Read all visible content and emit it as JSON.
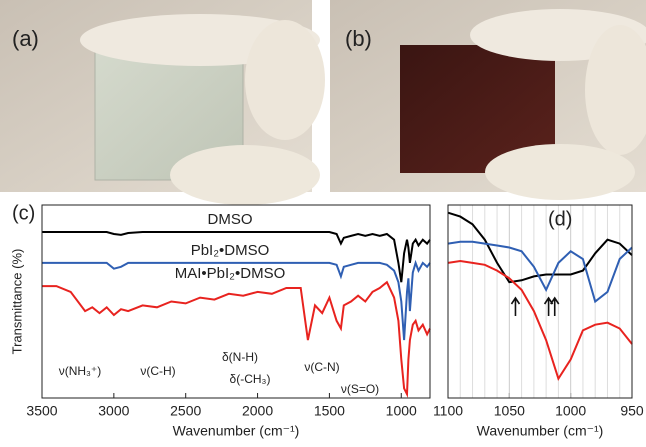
{
  "photos": [
    {
      "label": "(a)"
    },
    {
      "label": "(b)"
    }
  ],
  "chart_data": [
    {
      "type": "line",
      "panel_label": "(c)",
      "xlabel": "Wavenumber (cm⁻¹)",
      "ylabel": "Transmittance (%)",
      "xlim": [
        3500,
        800
      ],
      "xticks": [
        3500,
        3000,
        2500,
        2000,
        1500,
        1000
      ],
      "ylim": [
        0,
        100
      ],
      "grid": false,
      "x": [
        3500,
        3400,
        3300,
        3200,
        3150,
        3100,
        3050,
        3000,
        2950,
        2900,
        2800,
        2700,
        2600,
        2500,
        2400,
        2300,
        2200,
        2100,
        2000,
        1900,
        1800,
        1700,
        1650,
        1600,
        1550,
        1500,
        1450,
        1420,
        1400,
        1350,
        1300,
        1250,
        1200,
        1150,
        1100,
        1050,
        1020,
        1000,
        980,
        960,
        950,
        940,
        920,
        900,
        880,
        850,
        820,
        800
      ],
      "series": [
        {
          "name": "DMSO",
          "color": "#000000",
          "values": [
            86,
            86,
            86,
            86,
            86,
            86,
            86,
            85,
            84.5,
            85.5,
            86,
            86,
            86,
            86,
            86,
            86,
            86,
            86,
            86,
            86,
            86,
            86,
            86,
            86,
            86,
            86,
            85,
            80,
            83,
            84,
            85,
            84,
            85,
            84,
            85,
            82,
            70,
            60,
            75,
            82,
            78,
            70,
            80,
            82,
            79,
            82,
            80,
            82
          ]
        },
        {
          "name": "PbI₂•DMSO",
          "color": "#2f5fb3",
          "values": [
            70,
            70,
            70,
            70,
            70,
            70,
            70,
            67,
            68,
            70,
            70,
            70,
            70,
            70,
            70,
            70,
            70,
            70,
            70,
            70,
            70,
            70,
            70,
            70,
            70,
            70,
            69,
            63,
            68,
            69,
            70,
            70,
            70,
            70,
            69,
            66,
            60,
            50,
            30,
            55,
            62,
            45,
            65,
            70,
            66,
            70,
            68,
            70
          ]
        },
        {
          "name": "MAI•PbI₂•DMSO",
          "color": "#e8231f",
          "values": [
            58,
            58,
            55,
            45,
            47,
            44,
            47,
            43,
            46,
            45,
            48,
            47,
            50,
            49,
            52,
            51,
            54,
            53,
            55,
            54,
            57,
            57,
            30,
            48,
            44,
            52,
            40,
            36,
            48,
            50,
            53,
            50,
            55,
            57,
            60,
            52,
            40,
            20,
            5,
            2,
            20,
            30,
            38,
            40,
            35,
            38,
            33,
            36
          ]
        }
      ],
      "annotations": [
        "ν(NH₃⁺)",
        "ν(C-H)",
        "δ(N-H)",
        "δ(-CH₃)",
        "ν(C-N)",
        "ν(S=O)"
      ]
    },
    {
      "type": "line",
      "panel_label": "(d)",
      "xlabel": "Wavenumber (cm⁻¹)",
      "xlim": [
        1100,
        950
      ],
      "xticks": [
        1100,
        1050,
        1000,
        950
      ],
      "xticks_minor": [
        1090,
        1080,
        1070,
        1060,
        1040,
        1030,
        1020,
        1010,
        990,
        980,
        970,
        960
      ],
      "ylim": [
        0,
        100
      ],
      "grid": true,
      "x": [
        1100,
        1090,
        1080,
        1070,
        1060,
        1050,
        1040,
        1030,
        1020,
        1010,
        1000,
        990,
        980,
        970,
        960,
        950
      ],
      "series": [
        {
          "name": "DMSO",
          "color": "#000000",
          "values": [
            96,
            94,
            90,
            82,
            70,
            60,
            61,
            63,
            64,
            64,
            64,
            66,
            75,
            82,
            80,
            74
          ]
        },
        {
          "name": "PbI₂•DMSO",
          "color": "#2f5fb3",
          "values": [
            80,
            81,
            81,
            80,
            79,
            78,
            76,
            68,
            56,
            70,
            76,
            72,
            50,
            55,
            72,
            78
          ]
        },
        {
          "name": "MAI•PbI₂•DMSO",
          "color": "#e8231f",
          "values": [
            70,
            71,
            70,
            69,
            66,
            62,
            56,
            45,
            30,
            10,
            20,
            35,
            38,
            39,
            36,
            28
          ]
        }
      ]
    }
  ]
}
